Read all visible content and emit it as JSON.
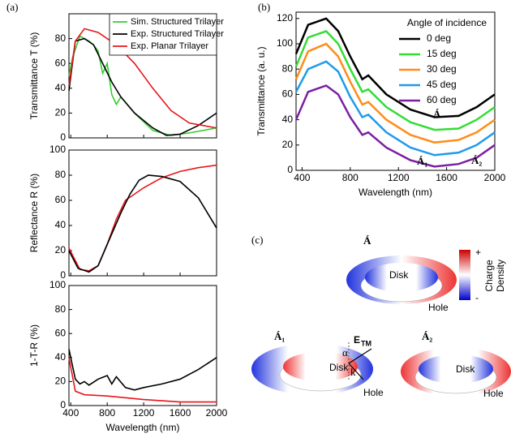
{
  "chart_data": [
    {
      "type": "line",
      "panel": "(a)",
      "ylabel": "Transmittance T (%)",
      "xlim": [
        380,
        2000
      ],
      "xticks": [
        400,
        800,
        1200,
        1600,
        2000
      ],
      "ylim": [
        0,
        100
      ],
      "yticks": [
        0,
        20,
        40,
        60,
        80
      ],
      "legend": "upper-right",
      "series": [
        {
          "name": "Sim. Structured Trilayer",
          "color": "#33cc33",
          "x": [
            380,
            420,
            500,
            600,
            650,
            700,
            750,
            800,
            850,
            900,
            950,
            1100,
            1300,
            1500,
            1700,
            2000
          ],
          "values": [
            50,
            65,
            82,
            78,
            75,
            70,
            52,
            60,
            35,
            27,
            33,
            20,
            6,
            2,
            4,
            8
          ]
        },
        {
          "name": "Exp. Structured Trilayer",
          "color": "#000000",
          "x": [
            380,
            450,
            550,
            650,
            750,
            850,
            950,
            1100,
            1300,
            1450,
            1600,
            1800,
            2000
          ],
          "values": [
            38,
            78,
            80,
            75,
            60,
            45,
            33,
            20,
            8,
            2,
            3,
            10,
            20
          ]
        },
        {
          "name": "Exp. Planar Trilayer",
          "color": "#e8151b",
          "x": [
            380,
            450,
            550,
            700,
            900,
            1100,
            1300,
            1500,
            1700,
            2000
          ],
          "values": [
            42,
            78,
            88,
            85,
            75,
            60,
            40,
            22,
            12,
            8
          ]
        }
      ]
    },
    {
      "type": "line",
      "ylabel": "Reflectance R (%)",
      "xlim": [
        380,
        2000
      ],
      "xticks": [
        400,
        800,
        1200,
        1600,
        2000
      ],
      "ylim": [
        0,
        100
      ],
      "yticks": [
        0,
        20,
        40,
        60,
        80,
        100
      ],
      "series": [
        {
          "color": "#e8151b",
          "x": [
            380,
            500,
            600,
            700,
            800,
            900,
            1000,
            1200,
            1400,
            1600,
            1800,
            2000
          ],
          "values": [
            22,
            5,
            4,
            8,
            25,
            45,
            60,
            70,
            78,
            83,
            86,
            88
          ]
        },
        {
          "color": "#000000",
          "x": [
            380,
            480,
            600,
            700,
            800,
            950,
            1050,
            1150,
            1250,
            1400,
            1600,
            1800,
            2000
          ],
          "values": [
            20,
            6,
            3,
            8,
            25,
            50,
            65,
            76,
            80,
            79,
            75,
            62,
            38
          ]
        }
      ]
    },
    {
      "type": "line",
      "ylabel": "1-T-R (%)",
      "xlabel": "Wavelength (nm)",
      "xlim": [
        380,
        2000
      ],
      "xticks": [
        400,
        800,
        1200,
        1600,
        2000
      ],
      "ylim": [
        0,
        100
      ],
      "yticks": [
        0,
        20,
        40,
        60,
        80,
        100
      ],
      "series": [
        {
          "color": "#e8151b",
          "x": [
            380,
            450,
            550,
            800,
            1200,
            1600,
            2000
          ],
          "values": [
            40,
            12,
            9,
            8,
            5,
            3,
            3
          ]
        },
        {
          "color": "#000000",
          "x": [
            380,
            450,
            500,
            550,
            600,
            700,
            800,
            850,
            900,
            1000,
            1100,
            1200,
            1400,
            1600,
            1800,
            2000
          ],
          "values": [
            47,
            22,
            18,
            20,
            17,
            22,
            25,
            18,
            24,
            15,
            13,
            15,
            18,
            22,
            30,
            40
          ]
        }
      ]
    },
    {
      "type": "line",
      "panel": "(b)",
      "ylabel": "Transmittance (a. u.)",
      "xlabel": "Wavelength (nm)",
      "xlim": [
        350,
        2000
      ],
      "xticks": [
        400,
        800,
        1200,
        1600,
        2000
      ],
      "ylim": [
        0,
        125
      ],
      "yticks": [
        0,
        20,
        40,
        60,
        80,
        100,
        120
      ],
      "legend_title": "Angle of incidence",
      "legend": "upper-right",
      "annotations": [
        "Á",
        "Á₁",
        "Á₂"
      ],
      "series": [
        {
          "name": "0 deg",
          "color": "#000000",
          "x": [
            350,
            450,
            600,
            700,
            800,
            900,
            950,
            1100,
            1300,
            1500,
            1700,
            1850,
            2000
          ],
          "values": [
            92,
            115,
            120,
            110,
            90,
            72,
            75,
            60,
            48,
            42,
            43,
            50,
            60
          ]
        },
        {
          "name": "15 deg",
          "color": "#33dd33",
          "x": [
            350,
            450,
            600,
            700,
            800,
            900,
            950,
            1100,
            1300,
            1500,
            1700,
            1850,
            2000
          ],
          "values": [
            82,
            105,
            110,
            100,
            80,
            62,
            64,
            50,
            38,
            32,
            33,
            40,
            50
          ]
        },
        {
          "name": "30 deg",
          "color": "#ff8c1a",
          "x": [
            350,
            450,
            600,
            700,
            800,
            900,
            950,
            1100,
            1300,
            1500,
            1700,
            1850,
            2000
          ],
          "values": [
            72,
            94,
            100,
            90,
            70,
            52,
            54,
            40,
            28,
            22,
            24,
            30,
            40
          ]
        },
        {
          "name": "45 deg",
          "color": "#1e9bea",
          "x": [
            350,
            450,
            600,
            700,
            800,
            900,
            950,
            1100,
            1300,
            1500,
            1700,
            1850,
            2000
          ],
          "values": [
            62,
            80,
            86,
            78,
            58,
            42,
            44,
            30,
            18,
            12,
            14,
            20,
            30
          ]
        },
        {
          "name": "60 deg",
          "color": "#7b1fa2",
          "x": [
            350,
            450,
            600,
            700,
            800,
            900,
            950,
            1100,
            1300,
            1500,
            1700,
            1850,
            2000
          ],
          "values": [
            40,
            62,
            67,
            60,
            42,
            28,
            30,
            18,
            8,
            3,
            5,
            10,
            20
          ]
        }
      ]
    }
  ],
  "panel_c": {
    "label": "(c)",
    "top": {
      "mode": "Á",
      "disk": "Disk",
      "hole": "Hole"
    },
    "colorbar": {
      "plus": "+",
      "minus": "-",
      "title_1": "Charge",
      "title_2": "Density"
    },
    "bottom_left": {
      "mode": "Á₁",
      "field": "E",
      "field_sub": "TM",
      "angle": "α",
      "wavevector": "k",
      "disk": "Disk",
      "hole": "Hole"
    },
    "bottom_right": {
      "mode": "Á₂",
      "disk": "Disk",
      "hole": "Hole"
    }
  }
}
